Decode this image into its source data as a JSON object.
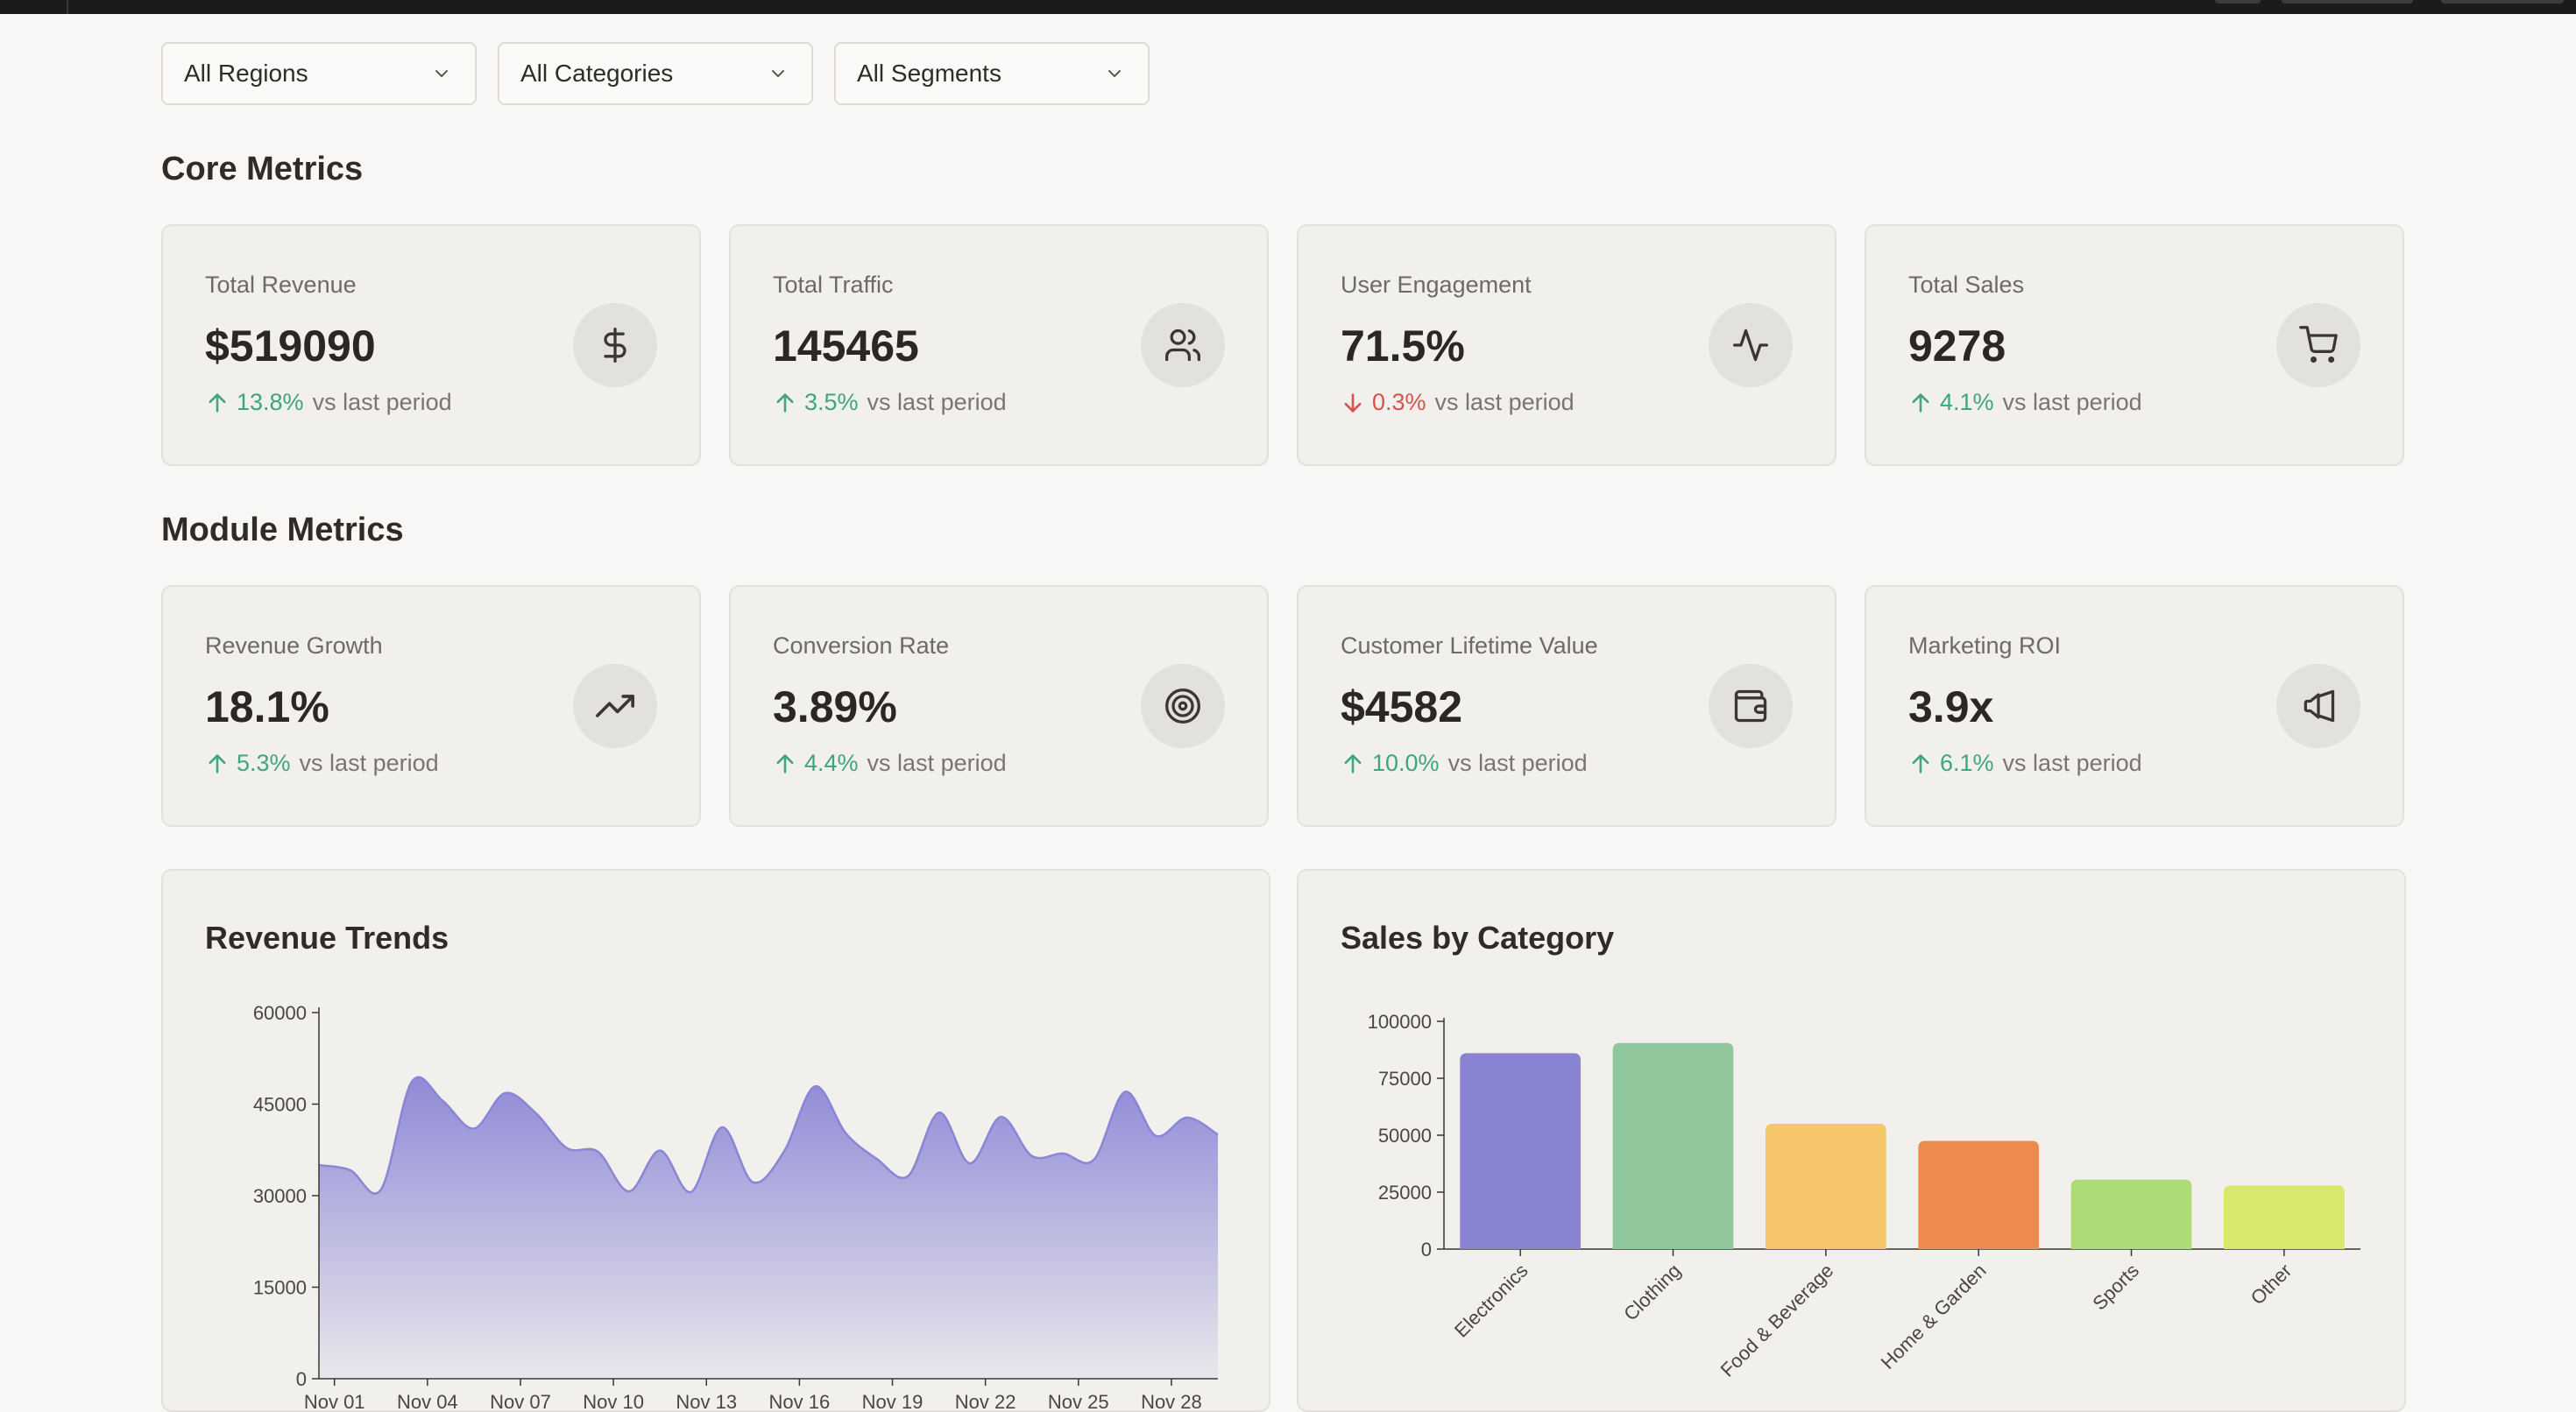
{
  "filters": [
    {
      "value": "All Regions"
    },
    {
      "value": "All Categories"
    },
    {
      "value": "All Segments"
    }
  ],
  "sections": {
    "core": "Core Metrics",
    "module": "Module Metrics"
  },
  "core_metrics": [
    {
      "label": "Total Revenue",
      "value": "$519090",
      "change": "13.8%",
      "direction": "up",
      "suffix": "vs last period",
      "icon": "dollar-icon"
    },
    {
      "label": "Total Traffic",
      "value": "145465",
      "change": "3.5%",
      "direction": "up",
      "suffix": "vs last period",
      "icon": "users-icon"
    },
    {
      "label": "User Engagement",
      "value": "71.5%",
      "change": "0.3%",
      "direction": "down",
      "suffix": "vs last period",
      "icon": "activity-icon"
    },
    {
      "label": "Total Sales",
      "value": "9278",
      "change": "4.1%",
      "direction": "up",
      "suffix": "vs last period",
      "icon": "cart-icon"
    }
  ],
  "module_metrics": [
    {
      "label": "Revenue Growth",
      "value": "18.1%",
      "change": "5.3%",
      "direction": "up",
      "suffix": "vs last period",
      "icon": "trending-up-icon"
    },
    {
      "label": "Conversion Rate",
      "value": "3.89%",
      "change": "4.4%",
      "direction": "up",
      "suffix": "vs last period",
      "icon": "target-icon"
    },
    {
      "label": "Customer Lifetime Value",
      "value": "$4582",
      "change": "10.0%",
      "direction": "up",
      "suffix": "vs last period",
      "icon": "wallet-icon"
    },
    {
      "label": "Marketing ROI",
      "value": "3.9x",
      "change": "6.1%",
      "direction": "up",
      "suffix": "vs last period",
      "icon": "megaphone-icon"
    }
  ],
  "colors": {
    "up": "#3fa57a",
    "down": "#d9514a",
    "area": "#8b85d6",
    "bars": [
      "#8983d4",
      "#8fc69b",
      "#f6c76a",
      "#ef8a4f",
      "#addc76",
      "#d9e86c"
    ]
  },
  "chart_data": [
    {
      "type": "area",
      "title": "Revenue Trends",
      "ylim": [
        0,
        60000
      ],
      "yticks": [
        0,
        15000,
        30000,
        45000,
        60000
      ],
      "xtick_labels": [
        "Nov 01",
        "Nov 04",
        "Nov 07",
        "Nov 10",
        "Nov 13",
        "Nov 16",
        "Nov 19",
        "Nov 22",
        "Nov 25",
        "Nov 28"
      ],
      "values": [
        35000,
        34200,
        31000,
        48700,
        45500,
        41000,
        46800,
        43500,
        37800,
        37200,
        30700,
        37400,
        30600,
        41200,
        32200,
        37200,
        47900,
        40200,
        36000,
        33200,
        43600,
        35300,
        42900,
        36500,
        36900,
        35900,
        47000,
        39800,
        42800,
        40000
      ]
    },
    {
      "type": "bar",
      "title": "Sales by Category",
      "ylim": [
        0,
        100000
      ],
      "yticks": [
        0,
        25000,
        50000,
        75000,
        100000
      ],
      "categories": [
        "Electronics",
        "Clothing",
        "Food & Beverage",
        "Home & Garden",
        "Sports",
        "Other"
      ],
      "values": [
        86000,
        90500,
        55000,
        47500,
        30500,
        28000
      ]
    }
  ]
}
